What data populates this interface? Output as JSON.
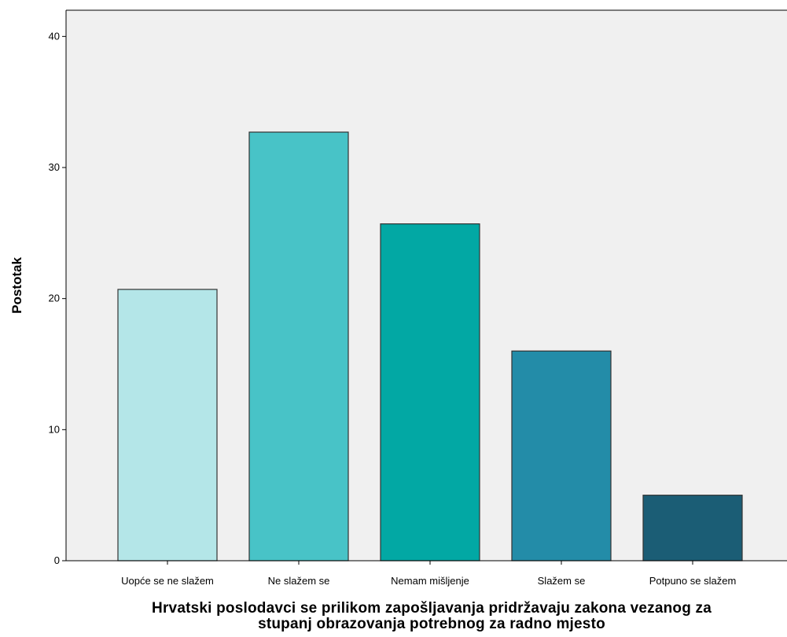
{
  "chart_data": {
    "type": "bar",
    "categories": [
      "Uopće se ne slažem",
      "Ne slažem se",
      "Nemam mišljenje",
      "Slažem se",
      "Potpuno se slažem"
    ],
    "values": [
      20.7,
      32.7,
      25.7,
      16.0,
      5.0
    ],
    "colors": [
      "#b4e6e8",
      "#48c3c7",
      "#02a8a4",
      "#238ca8",
      "#1b5d75"
    ],
    "background": "#f0f0f0",
    "xlabel_lines": [
      "Hrvatski poslodavci se prilikom zapošljavanja pridržavaju zakona vezanog za",
      "stupanj obrazovanja potrebnog za radno mjesto"
    ],
    "ylabel": "Postotak",
    "yticks": [
      0,
      10,
      20,
      30,
      40
    ],
    "ytick_labels": [
      "0",
      "10",
      "20",
      "30",
      "40"
    ],
    "ylim": [
      0,
      42
    ],
    "grid": false
  }
}
